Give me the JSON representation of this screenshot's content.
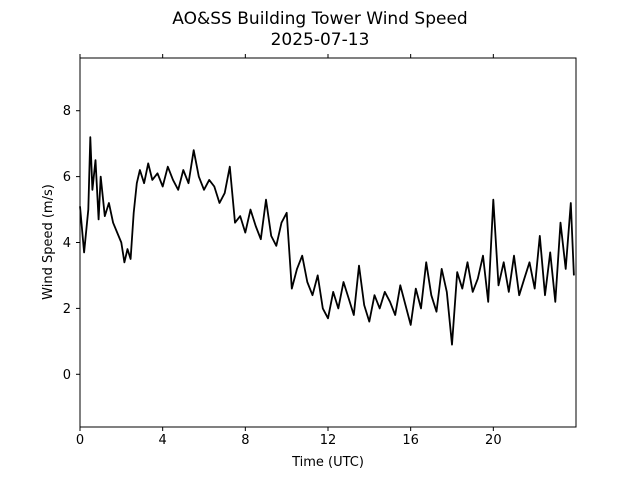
{
  "chart_data": {
    "type": "line",
    "title": "AO&SS Building Tower Wind Speed",
    "subtitle": "2025-07-13",
    "xlabel": "Time (UTC)",
    "ylabel": "Wind Speed (m/s)",
    "xlim": [
      0,
      24
    ],
    "ylim": [
      -1.6,
      9.6
    ],
    "xticks": [
      0,
      4,
      8,
      12,
      16,
      20
    ],
    "xtick_labels": [
      "0",
      "4",
      "8",
      "12",
      "16",
      "20"
    ],
    "yticks": [
      0,
      2,
      4,
      6,
      8
    ],
    "ytick_labels": [
      "0",
      "2",
      "4",
      "6",
      "8"
    ],
    "grid": false,
    "line_color": "#000000",
    "series": [
      {
        "x": [
          0.0,
          0.2,
          0.4,
          0.5,
          0.6,
          0.75,
          0.9,
          1.0,
          1.2,
          1.4,
          1.6,
          1.8,
          2.0,
          2.15,
          2.3,
          2.45,
          2.6,
          2.75,
          2.9,
          3.1,
          3.3,
          3.5,
          3.75,
          4.0,
          4.25,
          4.5,
          4.75,
          5.0,
          5.25,
          5.5,
          5.75,
          6.0,
          6.25,
          6.5,
          6.75,
          7.0,
          7.25,
          7.5,
          7.75,
          8.0,
          8.25,
          8.5,
          8.75,
          9.0,
          9.25,
          9.5,
          9.75,
          10.0,
          10.25,
          10.5,
          10.75,
          11.0,
          11.25,
          11.5,
          11.75,
          12.0,
          12.25,
          12.5,
          12.75,
          13.0,
          13.25,
          13.5,
          13.75,
          14.0,
          14.25,
          14.5,
          14.75,
          15.0,
          15.25,
          15.5,
          15.75,
          16.0,
          16.25,
          16.5,
          16.75,
          17.0,
          17.25,
          17.5,
          17.75,
          18.0,
          18.25,
          18.5,
          18.75,
          19.0,
          19.25,
          19.5,
          19.75,
          20.0,
          20.25,
          20.5,
          20.75,
          21.0,
          21.25,
          21.5,
          21.75,
          22.0,
          22.25,
          22.5,
          22.75,
          23.0,
          23.25,
          23.5,
          23.75,
          23.9
        ],
        "values": [
          5.1,
          3.7,
          5.0,
          7.2,
          5.6,
          6.5,
          4.7,
          6.0,
          4.8,
          5.2,
          4.6,
          4.3,
          4.0,
          3.4,
          3.8,
          3.5,
          4.9,
          5.8,
          6.2,
          5.8,
          6.4,
          5.9,
          6.1,
          5.7,
          6.3,
          5.9,
          5.6,
          6.2,
          5.8,
          6.8,
          6.0,
          5.6,
          5.9,
          5.7,
          5.2,
          5.5,
          6.3,
          4.6,
          4.8,
          4.3,
          5.0,
          4.5,
          4.1,
          5.3,
          4.2,
          3.9,
          4.6,
          4.9,
          2.6,
          3.2,
          3.6,
          2.8,
          2.4,
          3.0,
          2.0,
          1.7,
          2.5,
          2.0,
          2.8,
          2.3,
          1.8,
          3.3,
          2.1,
          1.6,
          2.4,
          2.0,
          2.5,
          2.2,
          1.8,
          2.7,
          2.1,
          1.5,
          2.6,
          2.0,
          3.4,
          2.4,
          1.9,
          3.2,
          2.5,
          0.9,
          3.1,
          2.6,
          3.4,
          2.5,
          2.9,
          3.6,
          2.2,
          5.3,
          2.7,
          3.4,
          2.5,
          3.6,
          2.4,
          2.9,
          3.4,
          2.6,
          4.2,
          2.4,
          3.7,
          2.2,
          4.6,
          3.2,
          5.2,
          3.0
        ]
      }
    ]
  }
}
